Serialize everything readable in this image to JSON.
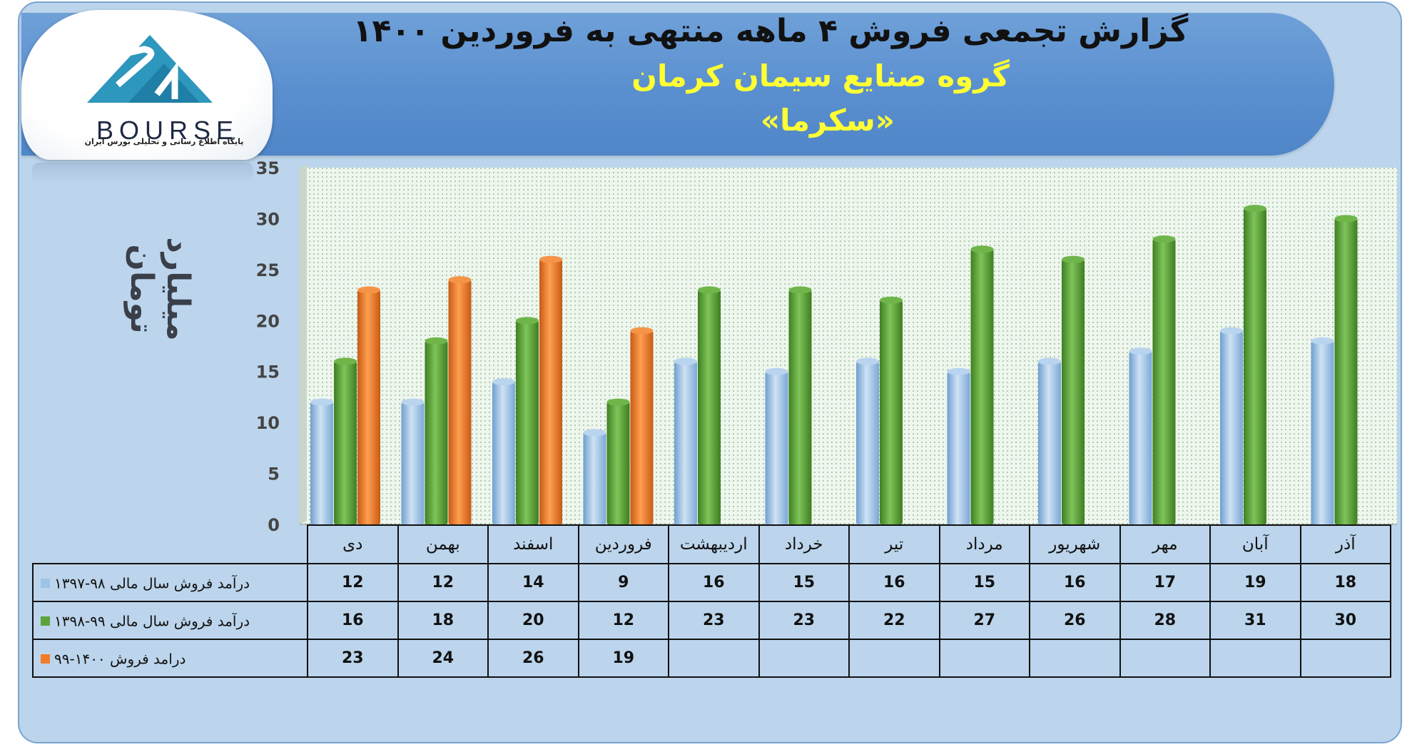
{
  "header": {
    "title": "گزارش تجمعی فروش ۴ ماهه منتهی به فروردین ۱۴۰۰",
    "subtitle": "گروه صنایع سیمان کرمان",
    "symbol": "«سکرما»"
  },
  "logo": {
    "word": "BOURSE",
    "tagline": "پایگاه اطلاع رسانی و تحلیلی بورس ایران"
  },
  "colors": {
    "series_1": "#9dc3e6",
    "series_2": "#5ca33a",
    "series_3": "#f07c2a",
    "banner": "#5b92d2",
    "subtitle": "#ffff33"
  },
  "chart_data": {
    "type": "bar",
    "ylabel": "میلیارد تومان",
    "ylim": [
      0,
      35
    ],
    "yticks": [
      0,
      5,
      10,
      15,
      20,
      25,
      30,
      35
    ],
    "grid": false,
    "legend": "table-left",
    "categories": [
      "دی",
      "بهمن",
      "اسفند",
      "فروردین",
      "اردیبهشت",
      "خرداد",
      "تیر",
      "مرداد",
      "شهریور",
      "مهر",
      "آبان",
      "آذر"
    ],
    "series": [
      {
        "name": "درآمد فروش سال مالی ۹۸-۱۳۹۷",
        "color": "#9dc3e6",
        "values": [
          12,
          12,
          14,
          9,
          16,
          15,
          16,
          15,
          16,
          17,
          19,
          18
        ]
      },
      {
        "name": "درآمد فروش سال مالی ۹۹-۱۳۹۸",
        "color": "#5ca33a",
        "values": [
          16,
          18,
          20,
          12,
          23,
          23,
          22,
          27,
          26,
          28,
          31,
          30
        ]
      },
      {
        "name": "درامد فروش ۱۴۰۰-۹۹",
        "color": "#f07c2a",
        "values": [
          23,
          24,
          26,
          19,
          null,
          null,
          null,
          null,
          null,
          null,
          null,
          null
        ]
      }
    ]
  }
}
